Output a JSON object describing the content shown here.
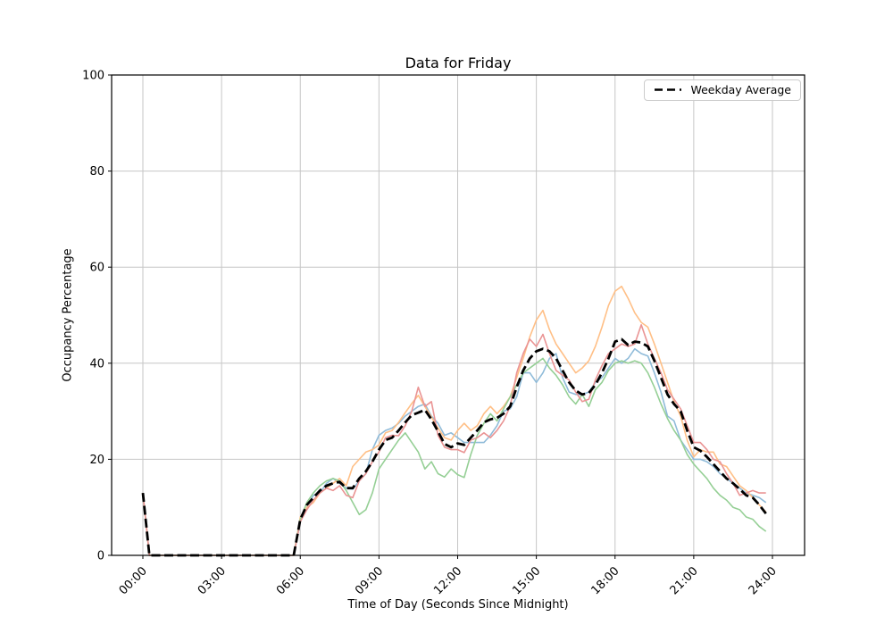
{
  "chart_data": {
    "type": "line",
    "title": "Data for Friday",
    "xlabel": "Time of Day (Seconds Since Midnight)",
    "ylabel": "Occupancy Percentage",
    "grid": true,
    "xlim_hours": [
      0,
      24
    ],
    "ylim": [
      0,
      100
    ],
    "x_tick_hours": [
      0,
      3,
      6,
      9,
      12,
      15,
      18,
      21,
      24
    ],
    "x_tick_labels": [
      "00:00",
      "03:00",
      "06:00",
      "09:00",
      "12:00",
      "15:00",
      "18:00",
      "21:00",
      "24:00"
    ],
    "y_ticks": [
      0,
      20,
      40,
      60,
      80,
      100
    ],
    "legend": {
      "position": "upper right",
      "entries": [
        "Weekday Average"
      ]
    },
    "x_start_hour": 0,
    "x_step_hours": 0.25,
    "series": [
      {
        "name": "friday-series-blue",
        "color": "#8fbbd9",
        "line_width": 1.6,
        "dashed": false,
        "values": [
          13,
          0,
          0,
          0,
          0,
          0,
          0,
          0,
          0,
          0,
          0,
          0,
          0,
          0,
          0,
          0,
          0,
          0,
          0,
          0,
          0,
          0,
          0,
          0,
          7,
          10,
          12.5,
          13,
          15,
          16,
          15,
          14,
          13.8,
          15.5,
          17,
          22,
          25,
          26,
          26.5,
          27.5,
          29,
          30,
          31,
          31.5,
          29,
          27.5,
          25,
          25.5,
          24.5,
          23.5,
          23.5,
          23.5,
          23.5,
          25,
          27,
          30,
          30.5,
          33,
          38,
          38,
          36,
          38,
          41,
          42,
          37,
          34,
          33.5,
          33.5,
          34,
          36,
          37,
          39,
          41,
          40,
          41,
          43,
          42,
          41.5,
          38,
          34,
          29,
          28,
          24,
          22,
          20,
          20,
          19.5,
          18.5,
          17,
          16,
          15,
          14,
          13,
          12.5,
          12,
          11
        ]
      },
      {
        "name": "friday-series-orange",
        "color": "#ffbf86",
        "line_width": 1.6,
        "dashed": false,
        "values": [
          13,
          0,
          0,
          0,
          0,
          0,
          0,
          0,
          0,
          0,
          0,
          0,
          0,
          0,
          0,
          0,
          0,
          0,
          0,
          0,
          0,
          0,
          0,
          0,
          8,
          10,
          11,
          13,
          14,
          15,
          16,
          14.5,
          18.5,
          20,
          21.5,
          22,
          23,
          25.5,
          26,
          27.7,
          29.7,
          31.6,
          33.3,
          31,
          28.8,
          26.5,
          24.5,
          24,
          26,
          27.5,
          26,
          27,
          29.5,
          31,
          29.5,
          31,
          33,
          37,
          41,
          45.5,
          49,
          51,
          47,
          44,
          42,
          40,
          38,
          39,
          40.5,
          43.5,
          47.5,
          52,
          55,
          56,
          53.5,
          50.5,
          48.5,
          47.5,
          44,
          40,
          36,
          32,
          29,
          24,
          20.5,
          22,
          21.5,
          21.5,
          19,
          18.5,
          16.5,
          14.5,
          13.5,
          12,
          10.5,
          9
        ]
      },
      {
        "name": "friday-series-green",
        "color": "#95cf95",
        "line_width": 1.6,
        "dashed": false,
        "values": [
          13,
          0,
          0,
          0,
          0,
          0,
          0,
          0,
          0,
          0,
          0,
          0,
          0,
          0,
          0,
          0,
          0,
          0,
          0,
          0,
          0,
          0,
          0,
          0,
          7.5,
          11,
          13,
          14.5,
          15.5,
          16,
          15.5,
          13.5,
          11,
          8.5,
          9.5,
          13,
          18,
          20,
          22,
          24,
          25.5,
          23.5,
          21.5,
          18,
          19.5,
          17,
          16.3,
          18,
          16.8,
          16.2,
          21,
          25,
          27.5,
          29.5,
          28,
          30.5,
          33,
          35.5,
          38,
          39,
          40,
          41,
          39,
          37.5,
          35.5,
          33,
          31.5,
          33.5,
          31,
          34.5,
          36,
          38.5,
          40,
          40.5,
          40,
          40.5,
          40,
          38,
          35,
          31.5,
          28.5,
          26,
          24,
          21,
          19,
          17.5,
          16,
          14,
          12.5,
          11.5,
          10,
          9.5,
          8,
          7.5,
          6,
          5
        ]
      },
      {
        "name": "friday-series-red",
        "color": "#ea9494",
        "line_width": 1.6,
        "dashed": false,
        "values": [
          13,
          0,
          0,
          0,
          0,
          0,
          0,
          0,
          0,
          0,
          0,
          0,
          0,
          0,
          0,
          0,
          0,
          0,
          0,
          0,
          0,
          0,
          0,
          0,
          7,
          9.5,
          11.5,
          13,
          14,
          13.5,
          14.5,
          12.5,
          12,
          15.5,
          17,
          19.5,
          21.5,
          24.5,
          25,
          24.9,
          27,
          30,
          35,
          31,
          32,
          25,
          22.5,
          22,
          22,
          21.4,
          24,
          24.5,
          25.5,
          24.5,
          26,
          28,
          31,
          38,
          42,
          45,
          43.5,
          46,
          42,
          38.5,
          37.5,
          36.5,
          34,
          32,
          32.5,
          36.5,
          39.5,
          42,
          43,
          44,
          43.5,
          44,
          48,
          44,
          41,
          38,
          34.5,
          32.5,
          30.5,
          27,
          23.5,
          23.5,
          22,
          20,
          19.5,
          17,
          15,
          12.5,
          13,
          13.5,
          13,
          13
        ]
      },
      {
        "name": "Weekday Average",
        "color": "#000000",
        "line_width": 2.8,
        "dashed": true,
        "values": [
          13,
          0,
          0,
          0,
          0,
          0,
          0,
          0,
          0,
          0,
          0,
          0,
          0,
          0,
          0,
          0,
          0,
          0,
          0,
          0,
          0,
          0,
          0,
          0,
          7.5,
          10.5,
          12,
          13.5,
          14.5,
          15,
          15.3,
          14,
          14,
          16,
          17.5,
          19.5,
          22,
          24,
          24.5,
          26,
          27.7,
          29.2,
          29.7,
          30.3,
          28.3,
          25.8,
          23.2,
          22.5,
          23.3,
          23,
          24.5,
          26,
          27.7,
          28.3,
          28.6,
          29.5,
          31,
          35,
          38.5,
          41,
          42.5,
          43,
          42.5,
          41,
          38.5,
          36,
          34.3,
          33.5,
          33.8,
          35.5,
          38,
          41,
          44.5,
          45,
          43.8,
          44.5,
          44.3,
          43.5,
          40.5,
          37,
          33.5,
          31.5,
          30,
          26,
          22.5,
          21.8,
          20.5,
          19,
          17.5,
          16,
          15,
          13.8,
          12.5,
          12,
          10.5,
          8.7
        ]
      }
    ]
  }
}
